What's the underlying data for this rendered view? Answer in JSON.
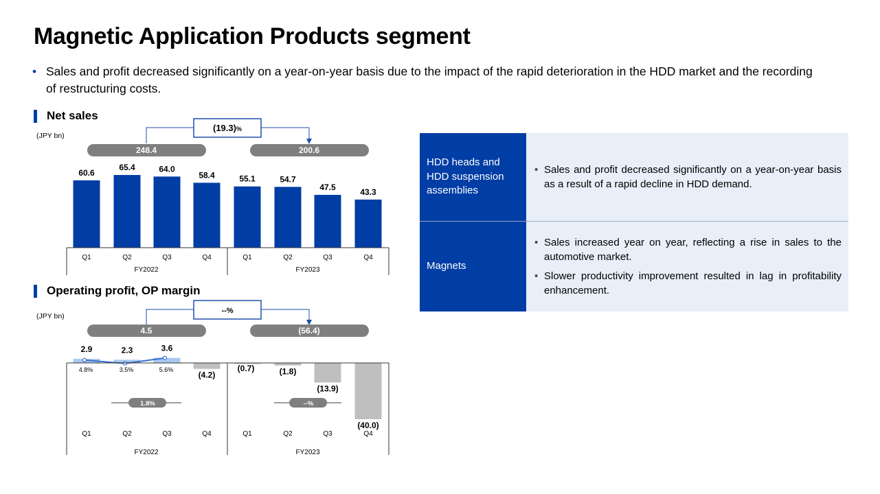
{
  "title": "Magnetic Application Products segment",
  "intro": "Sales and profit decreased significantly on a year-on-year basis due to the impact of the rapid deterioration in the HDD market and the recording of restructuring costs.",
  "net_sales": {
    "heading": "Net sales",
    "unit": "(JPY bn)",
    "change": "(19.3)",
    "change_unit": "%",
    "totals": [
      "248.4",
      "200.6"
    ],
    "value_labels": [
      "60.6",
      "65.4",
      "64.0",
      "58.4",
      "55.1",
      "54.7",
      "47.5",
      "43.3"
    ]
  },
  "op_profit": {
    "heading": "Operating profit, OP margin",
    "unit": "(JPY bn)",
    "change": "--%",
    "totals": [
      "4.5",
      "(56.4)"
    ],
    "value_labels": [
      "2.9",
      "2.3",
      "3.6",
      "(4.2)",
      "(0.7)",
      "(1.8)",
      "(13.9)",
      "(40.0)"
    ],
    "margin_labels": [
      "4.8%",
      "3.5%",
      "5.6%"
    ],
    "annual_margins": [
      "1.8%",
      "--%"
    ]
  },
  "quarters": [
    "Q1",
    "Q2",
    "Q3",
    "Q4",
    "Q1",
    "Q2",
    "Q3",
    "Q4"
  ],
  "fiscal_years": [
    "FY2022",
    "FY2023"
  ],
  "colors": {
    "bar_blue": "#003da5",
    "bar_light_blue": "#a9c8ee",
    "bar_gray": "#bfbfbf",
    "pill_gray": "#7f7f7f",
    "margin_line": "#3b6fd0",
    "table_header": "#003da5",
    "table_body": "#e8eff8"
  },
  "chart_data": [
    {
      "type": "bar",
      "title": "Net sales",
      "ylabel": "(JPY bn)",
      "categories": [
        "Q1",
        "Q2",
        "Q3",
        "Q4",
        "Q1",
        "Q2",
        "Q3",
        "Q4"
      ],
      "groups": [
        "FY2022",
        "FY2022",
        "FY2022",
        "FY2022",
        "FY2023",
        "FY2023",
        "FY2023",
        "FY2023"
      ],
      "values": [
        60.6,
        65.4,
        64.0,
        58.4,
        55.1,
        54.7,
        47.5,
        43.3
      ],
      "annual_totals": {
        "FY2022": 248.4,
        "FY2023": 200.6
      },
      "yoy_change": "(19.3)%",
      "ylim": [
        0,
        70
      ]
    },
    {
      "type": "bar",
      "title": "Operating profit, OP margin",
      "ylabel": "(JPY bn)",
      "categories": [
        "Q1",
        "Q2",
        "Q3",
        "Q4",
        "Q1",
        "Q2",
        "Q3",
        "Q4"
      ],
      "groups": [
        "FY2022",
        "FY2022",
        "FY2022",
        "FY2022",
        "FY2023",
        "FY2023",
        "FY2023",
        "FY2023"
      ],
      "series": [
        {
          "values": [
            2.9,
            2.3,
            3.6,
            -4.2,
            -0.7,
            -1.8,
            -13.9,
            -40.0
          ]
        },
        {
          "values": [
            4.8,
            3.5,
            5.6,
            null,
            null,
            null,
            null,
            null
          ],
          "unit": "%"
        }
      ],
      "annual_totals": {
        "FY2022": 4.5,
        "FY2023": -56.4
      },
      "annual_margin": {
        "FY2022": "1.8%",
        "FY2023": "--%"
      },
      "yoy_change": "--%",
      "ylim": [
        -40,
        4
      ]
    }
  ],
  "table": {
    "rows": [
      {
        "category": "HDD heads and HDD suspension assemblies",
        "bullets": [
          "Sales and profit decreased significantly on a year-on-year basis as a result of a rapid decline in HDD demand."
        ]
      },
      {
        "category": "Magnets",
        "bullets": [
          "Sales increased year on year, reflecting a rise in sales to the automotive market.",
          "Slower productivity improvement resulted in lag in profitability enhancement."
        ]
      }
    ]
  }
}
